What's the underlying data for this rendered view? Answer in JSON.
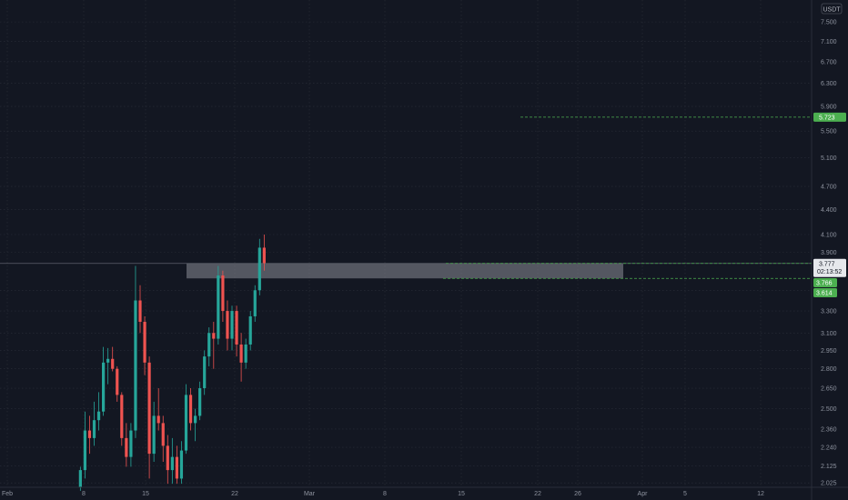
{
  "currency_label": "USDT",
  "colors": {
    "background": "#131722",
    "grid": "#2a2e39",
    "up": "#26a69a",
    "down": "#ef5350",
    "green_badge": "#4caf50",
    "zone": "#8a8d96"
  },
  "chart_data": {
    "type": "candlestick",
    "title": "",
    "y_scale": "log",
    "ylim": [
      2.0,
      7.9
    ],
    "y_ticks": [
      "7.500",
      "7.100",
      "6.700",
      "6.300",
      "5.900",
      "5.500",
      "5.100",
      "4.700",
      "4.400",
      "4.100",
      "3.900",
      "3.500",
      "3.300",
      "3.100",
      "2.950",
      "2.800",
      "2.650",
      "2.500",
      "2.360",
      "2.240",
      "2.125",
      "2.025"
    ],
    "x_ticks": [
      "Feb",
      "8",
      "15",
      "22",
      "Mar",
      "8",
      "15",
      "22",
      "26",
      "Apr",
      "5",
      "12"
    ],
    "grid": true,
    "price_levels": [
      {
        "label": "5.723",
        "value": 5.723,
        "style": "dashed"
      },
      {
        "label": "3.777",
        "value": 3.777,
        "style": "crosshair",
        "sub_label": "02:13:52"
      },
      {
        "label": "3.766",
        "value": 3.766,
        "style": "dashed"
      },
      {
        "label": "3.614",
        "value": 3.614,
        "style": "none"
      }
    ],
    "zone": {
      "from_date": "Feb 19",
      "to_date": "Mar 28",
      "high": 3.78,
      "low": 3.62
    },
    "candles": [
      [
        "Feb 8",
        2.0,
        2.12,
        1.98,
        2.1
      ],
      [
        "Feb 9",
        2.1,
        2.48,
        2.05,
        2.35
      ],
      [
        "Feb 10",
        2.35,
        2.45,
        2.2,
        2.3
      ],
      [
        "Feb 11",
        2.3,
        2.55,
        2.25,
        2.42
      ],
      [
        "Feb 12",
        2.42,
        2.62,
        2.35,
        2.48
      ],
      [
        "Feb 13",
        2.48,
        2.98,
        2.45,
        2.85
      ],
      [
        "Feb 14",
        2.85,
        2.97,
        2.68,
        2.88
      ],
      [
        "Feb 15",
        2.88,
        2.98,
        2.78,
        2.8
      ],
      [
        "Feb 16",
        2.8,
        2.82,
        2.55,
        2.6
      ],
      [
        "Feb 17",
        2.6,
        2.62,
        2.25,
        2.3
      ],
      [
        "Feb 18",
        2.3,
        2.4,
        2.12,
        2.18
      ],
      [
        "Feb 19",
        2.18,
        2.4,
        2.12,
        2.35
      ],
      [
        "Feb 20",
        2.35,
        3.75,
        2.3,
        3.4
      ],
      [
        "Feb 21",
        3.4,
        3.55,
        3.1,
        3.2
      ],
      [
        "Feb 22",
        3.2,
        3.25,
        2.75,
        2.85
      ],
      [
        "Feb 23",
        2.85,
        2.9,
        2.05,
        2.2
      ],
      [
        "Feb 24",
        2.2,
        2.55,
        2.15,
        2.45
      ],
      [
        "Feb 25",
        2.45,
        2.65,
        2.35,
        2.4
      ],
      [
        "Feb 26",
        2.4,
        2.45,
        2.15,
        2.25
      ],
      [
        "Feb 27",
        2.25,
        2.32,
        2.02,
        2.1
      ],
      [
        "Feb 28",
        2.1,
        2.3,
        2.02,
        2.18
      ],
      [
        "Mar 1",
        2.18,
        2.25,
        2.02,
        2.05
      ],
      [
        "Mar 2",
        2.05,
        2.28,
        2.02,
        2.22
      ],
      [
        "Mar 3",
        2.22,
        2.68,
        2.2,
        2.6
      ],
      [
        "Mar 4",
        2.6,
        2.65,
        2.35,
        2.4
      ],
      [
        "Mar 5",
        2.4,
        2.5,
        2.28,
        2.45
      ],
      [
        "Mar 6",
        2.45,
        2.7,
        2.42,
        2.65
      ],
      [
        "Mar 7",
        2.65,
        2.95,
        2.6,
        2.9
      ],
      [
        "Mar 8",
        2.9,
        3.15,
        2.82,
        3.1
      ],
      [
        "Mar 9",
        3.1,
        3.2,
        2.8,
        3.05
      ],
      [
        "Mar 10",
        3.05,
        3.75,
        3.0,
        3.65
      ],
      [
        "Mar 11",
        3.65,
        3.7,
        3.2,
        3.3
      ],
      [
        "Mar 12",
        3.3,
        3.4,
        2.95,
        3.05
      ],
      [
        "Mar 13",
        3.05,
        3.35,
        2.95,
        3.3
      ],
      [
        "Mar 14",
        3.3,
        3.35,
        2.9,
        3.0
      ],
      [
        "Mar 15",
        3.0,
        3.1,
        2.7,
        2.85
      ],
      [
        "Mar 16",
        2.85,
        3.05,
        2.8,
        3.0
      ],
      [
        "Mar 17",
        3.0,
        3.3,
        2.95,
        3.25
      ],
      [
        "Mar 18",
        3.25,
        3.55,
        3.2,
        3.5
      ],
      [
        "Mar 19",
        3.5,
        4.05,
        3.45,
        3.95
      ],
      [
        "Mar 20",
        3.95,
        4.1,
        3.7,
        3.78
      ]
    ]
  }
}
